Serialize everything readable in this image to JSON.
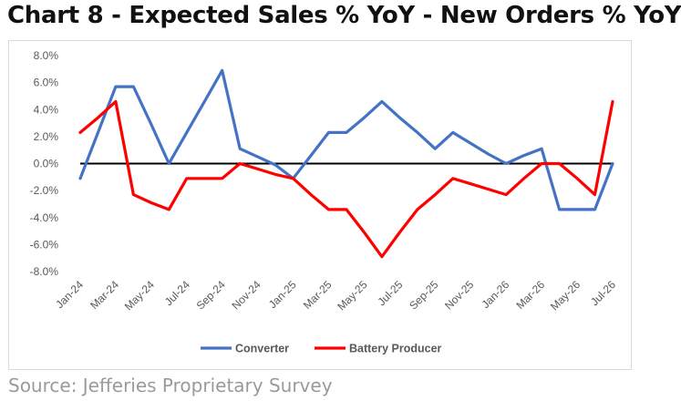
{
  "title": "Chart 8 - Expected Sales % YoY - New Orders % YoY",
  "source": "Source: Jefferies Proprietary Survey",
  "chart_data": {
    "type": "line",
    "x": [
      "Jan-24",
      "Feb-24",
      "Mar-24",
      "Apr-24",
      "May-24",
      "Jun-24",
      "Jul-24",
      "Aug-24",
      "Sep-24",
      "Oct-24",
      "Nov-24",
      "Dec-24",
      "Jan-25",
      "Feb-25",
      "Mar-25",
      "Apr-25",
      "May-25",
      "Jun-25",
      "Jul-25",
      "Aug-25",
      "Sep-25",
      "Oct-25",
      "Nov-25",
      "Dec-25",
      "Jan-26",
      "Feb-26",
      "Mar-26",
      "Apr-26",
      "May-26",
      "Jun-26",
      "Jul-26"
    ],
    "tick_labels": [
      "Jan-24",
      "Mar-24",
      "May-24",
      "Jul-24",
      "Sep-24",
      "Nov-24",
      "Jan-25",
      "Mar-25",
      "May-25",
      "Jul-25",
      "Sep-25",
      "Nov-25",
      "Jan-26",
      "Mar-26",
      "May-26",
      "Jul-26"
    ],
    "y_ticks": [
      "8.0%",
      "6.0%",
      "4.0%",
      "2.0%",
      "0.0%",
      "-2.0%",
      "-4.0%",
      "-6.0%",
      "-8.0%"
    ],
    "ylim": [
      -8,
      8
    ],
    "xlabel": "",
    "ylabel": "",
    "legend_position": "bottom",
    "grid": false,
    "series": [
      {
        "name": "Converter",
        "color": "#4472c4",
        "values": [
          -1.1,
          2.3,
          5.7,
          5.7,
          2.9,
          0.0,
          2.3,
          4.6,
          6.9,
          1.1,
          0.5,
          -0.1,
          -1.1,
          0.6,
          2.3,
          2.3,
          3.4,
          4.6,
          3.4,
          2.3,
          1.1,
          2.3,
          1.5,
          0.7,
          0.0,
          0.6,
          1.1,
          -3.4,
          -3.4,
          -3.4,
          0.0
        ]
      },
      {
        "name": "Battery Producer",
        "color": "#ff0000",
        "values": [
          2.3,
          3.4,
          4.6,
          -2.3,
          -2.9,
          -3.4,
          -1.1,
          -1.1,
          -1.1,
          0.0,
          -0.4,
          -0.8,
          -1.1,
          -2.3,
          -3.4,
          -3.4,
          -5.1,
          -6.9,
          -5.1,
          -3.4,
          -2.3,
          -1.1,
          -1.5,
          -1.9,
          -2.3,
          -1.1,
          0.0,
          0.0,
          -1.1,
          -2.3,
          4.6
        ]
      }
    ]
  }
}
